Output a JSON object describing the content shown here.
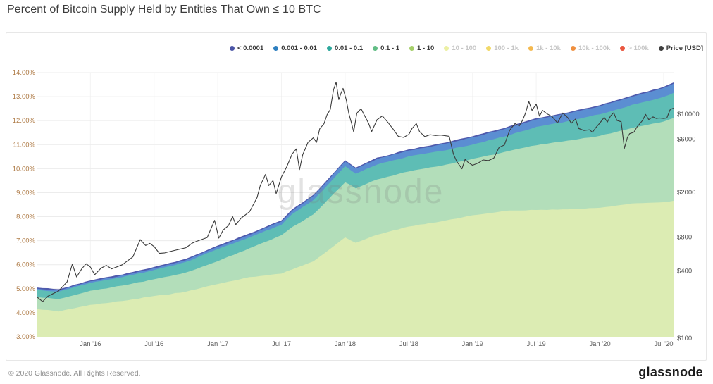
{
  "page": {
    "title": "Percent of Bitcoin Supply Held by Entities That Own ≤ 10 BTC"
  },
  "watermark": "glassnode",
  "footer": {
    "copyright": "© 2020 Glassnode. All Rights Reserved.",
    "brand": "glassnode"
  },
  "legend": {
    "position": "top-right",
    "items": [
      {
        "label": "< 0.0001",
        "color": "#4b55a6",
        "active": true
      },
      {
        "label": "0.001 - 0.01",
        "color": "#2e7fc0",
        "active": true
      },
      {
        "label": "0.01 - 0.1",
        "color": "#2fa89d",
        "active": true
      },
      {
        "label": "0.1 - 1",
        "color": "#62bd85",
        "active": true
      },
      {
        "label": "1 - 10",
        "color": "#a5cf6a",
        "active": true
      },
      {
        "label": "10 - 100",
        "color": "#ecf0a4",
        "active": false
      },
      {
        "label": "100 - 1k",
        "color": "#f1d969",
        "active": false
      },
      {
        "label": "1k - 10k",
        "color": "#f4b94f",
        "active": false
      },
      {
        "label": "10k - 100k",
        "color": "#ef8f3e",
        "active": false
      },
      {
        "label": "> 100k",
        "color": "#ea5740",
        "active": false
      },
      {
        "label": "Price [USD]",
        "color": "#404040",
        "active": true
      }
    ]
  },
  "chart_data": {
    "type": "area",
    "title": "Percent of Bitcoin Supply Held by Entities That Own ≤ 10 BTC",
    "stacked": true,
    "grid": true,
    "x_axis": {
      "start_month": "Aug 2015",
      "end_month": "Aug 2020",
      "tick_labels": [
        "Jan '16",
        "Jul '16",
        "Jan '17",
        "Jul '17",
        "Jan '18",
        "Jul '18",
        "Jan '19",
        "Jul '19",
        "Jan '20",
        "Jul '20"
      ],
      "tick_month_index": [
        5,
        11,
        17,
        23,
        29,
        35,
        41,
        47,
        53,
        59
      ],
      "label_color": "#5a5a5a"
    },
    "y_left": {
      "unit": "percent",
      "min": 3,
      "max": 14,
      "tick_labels": [
        "14.00%",
        "13.00%",
        "12.00%",
        "11.00%",
        "10.00%",
        "9.00%",
        "8.00%",
        "7.00%",
        "6.00%",
        "5.00%",
        "4.00%",
        "3.00%"
      ],
      "tick_values": [
        14,
        13,
        12,
        11,
        10,
        9,
        8,
        7,
        6,
        5,
        4,
        3
      ],
      "label_color": "#ae7a45"
    },
    "y_right": {
      "unit": "USD",
      "scale": "log",
      "tick_labels": [
        "$10000",
        "$6000",
        "$2000",
        "$800",
        "$400",
        "$100"
      ],
      "tick_values": [
        10000,
        6000,
        2000,
        800,
        400,
        100
      ],
      "label_color": "#4d4d4d"
    },
    "series_note": "cumulative_top_pct = stacked cumulative top of each band (percent of BTC supply), sampled at anchor_months (months since Aug 2015)",
    "anchor_months": [
      0,
      2,
      5,
      8,
      11,
      14,
      17,
      20,
      23,
      24,
      26,
      29,
      30,
      32,
      35,
      38,
      41,
      44,
      47,
      50,
      53,
      55,
      56,
      59,
      60
    ],
    "series": [
      {
        "name": "1 - 10",
        "fill": "#dcecb3",
        "cumulative_top_pct": [
          4.15,
          4.06,
          4.33,
          4.49,
          4.69,
          4.87,
          5.2,
          5.48,
          5.63,
          5.81,
          6.14,
          7.14,
          6.9,
          7.25,
          7.59,
          7.8,
          8.05,
          8.24,
          8.28,
          8.31,
          8.37,
          8.48,
          8.55,
          8.61,
          8.67
        ]
      },
      {
        "name": "0.1 - 1",
        "fill": "#b3deba",
        "cumulative_top_pct": [
          4.65,
          4.57,
          4.91,
          5.13,
          5.39,
          5.67,
          6.15,
          6.68,
          7.23,
          7.56,
          8.09,
          9.44,
          9.18,
          9.55,
          9.89,
          10.12,
          10.4,
          10.69,
          10.98,
          11.16,
          11.37,
          11.58,
          11.7,
          11.96,
          12.12
        ]
      },
      {
        "name": "0.01 - 0.1",
        "fill": "#5ebdb5",
        "cumulative_top_pct": [
          4.95,
          4.88,
          5.24,
          5.48,
          5.77,
          6.11,
          6.65,
          7.14,
          7.67,
          8.11,
          8.69,
          10.1,
          9.8,
          10.18,
          10.51,
          10.73,
          11.0,
          11.34,
          11.73,
          11.98,
          12.27,
          12.51,
          12.65,
          12.98,
          13.17
        ]
      },
      {
        "name": "0.001 - 0.01",
        "fill": "#5b8ed2",
        "cumulative_top_pct": [
          5.0,
          4.93,
          5.3,
          5.55,
          5.85,
          6.2,
          6.75,
          7.25,
          7.8,
          8.25,
          8.85,
          10.3,
          10.0,
          10.4,
          10.75,
          11.0,
          11.3,
          11.65,
          12.05,
          12.3,
          12.6,
          12.85,
          13.0,
          13.35,
          13.55
        ]
      },
      {
        "name": "< 0.0001",
        "fill": "#4f5aad",
        "cumulative_top_pct": [
          5.05,
          4.98,
          5.35,
          5.6,
          5.9,
          6.25,
          6.8,
          7.3,
          7.85,
          8.3,
          8.9,
          10.35,
          10.05,
          10.45,
          10.8,
          11.05,
          11.35,
          11.7,
          12.1,
          12.35,
          12.65,
          12.9,
          13.05,
          13.4,
          13.6
        ]
      }
    ],
    "price_series": {
      "name": "Price [USD]",
      "color": "#3b3b3b",
      "points_month_usd": [
        [
          0,
          232
        ],
        [
          0.5,
          212
        ],
        [
          1,
          237
        ],
        [
          2,
          264
        ],
        [
          2.8,
          318
        ],
        [
          3.3,
          460
        ],
        [
          3.7,
          352
        ],
        [
          4.2,
          418
        ],
        [
          4.6,
          462
        ],
        [
          5,
          432
        ],
        [
          5.4,
          368
        ],
        [
          6,
          422
        ],
        [
          6.5,
          447
        ],
        [
          7,
          416
        ],
        [
          8,
          452
        ],
        [
          9,
          532
        ],
        [
          9.7,
          758
        ],
        [
          10.2,
          672
        ],
        [
          10.6,
          702
        ],
        [
          11,
          658
        ],
        [
          11.5,
          572
        ],
        [
          12,
          578
        ],
        [
          13,
          610
        ],
        [
          14,
          642
        ],
        [
          14.6,
          706
        ],
        [
          15,
          732
        ],
        [
          16,
          792
        ],
        [
          16.7,
          1128
        ],
        [
          17.1,
          782
        ],
        [
          17.5,
          922
        ],
        [
          18,
          1012
        ],
        [
          18.4,
          1218
        ],
        [
          18.7,
          1032
        ],
        [
          19.2,
          1182
        ],
        [
          20,
          1348
        ],
        [
          20.7,
          1800
        ],
        [
          21,
          2300
        ],
        [
          21.5,
          2898
        ],
        [
          21.8,
          2302
        ],
        [
          22.2,
          2552
        ],
        [
          22.5,
          1952
        ],
        [
          23,
          2752
        ],
        [
          23.5,
          3400
        ],
        [
          24,
          4400
        ],
        [
          24.4,
          4900
        ],
        [
          24.7,
          3200
        ],
        [
          25,
          4350
        ],
        [
          25.5,
          5600
        ],
        [
          26,
          6150
        ],
        [
          26.3,
          5600
        ],
        [
          26.6,
          7400
        ],
        [
          27,
          8200
        ],
        [
          27.3,
          9900
        ],
        [
          27.6,
          11000
        ],
        [
          27.9,
          16500
        ],
        [
          28.15,
          19300
        ],
        [
          28.4,
          13500
        ],
        [
          28.6,
          15300
        ],
        [
          28.8,
          17000
        ],
        [
          29.1,
          13500
        ],
        [
          29.35,
          10100
        ],
        [
          29.6,
          8300
        ],
        [
          29.8,
          6950
        ],
        [
          30.1,
          10200
        ],
        [
          30.5,
          11200
        ],
        [
          30.8,
          9800
        ],
        [
          31.2,
          8300
        ],
        [
          31.5,
          7000
        ],
        [
          32,
          8900
        ],
        [
          32.5,
          9650
        ],
        [
          33,
          8500
        ],
        [
          33.5,
          7400
        ],
        [
          34,
          6350
        ],
        [
          34.5,
          6200
        ],
        [
          35,
          6600
        ],
        [
          35.3,
          7450
        ],
        [
          35.7,
          8250
        ],
        [
          36,
          7000
        ],
        [
          36.5,
          6300
        ],
        [
          37,
          6550
        ],
        [
          37.5,
          6450
        ],
        [
          38,
          6500
        ],
        [
          38.8,
          6350
        ],
        [
          39.2,
          4400
        ],
        [
          39.5,
          3800
        ],
        [
          40,
          3250
        ],
        [
          40.3,
          3950
        ],
        [
          40.6,
          3700
        ],
        [
          41,
          3500
        ],
        [
          41.5,
          3650
        ],
        [
          42,
          3900
        ],
        [
          42.5,
          3850
        ],
        [
          43,
          4050
        ],
        [
          43.5,
          5050
        ],
        [
          44,
          5300
        ],
        [
          44.5,
          7200
        ],
        [
          45,
          8250
        ],
        [
          45.4,
          7850
        ],
        [
          45.7,
          8750
        ],
        [
          46,
          10300
        ],
        [
          46.3,
          12998
        ],
        [
          46.6,
          10800
        ],
        [
          47,
          12300
        ],
        [
          47.3,
          9600
        ],
        [
          47.6,
          10800
        ],
        [
          48,
          10100
        ],
        [
          48.5,
          9500
        ],
        [
          49,
          8350
        ],
        [
          49.5,
          10250
        ],
        [
          50,
          9250
        ],
        [
          50.3,
          8300
        ],
        [
          50.7,
          9050
        ],
        [
          51,
          7450
        ],
        [
          51.5,
          7150
        ],
        [
          52,
          7250
        ],
        [
          52.3,
          6900
        ],
        [
          52.6,
          7550
        ],
        [
          53,
          8350
        ],
        [
          53.4,
          9350
        ],
        [
          53.7,
          8500
        ],
        [
          54,
          9650
        ],
        [
          54.3,
          10300
        ],
        [
          54.6,
          8800
        ],
        [
          55,
          8550
        ],
        [
          55.3,
          4950
        ],
        [
          55.6,
          6250
        ],
        [
          55.8,
          6700
        ],
        [
          56.2,
          6900
        ],
        [
          56.5,
          7700
        ],
        [
          57,
          8750
        ],
        [
          57.3,
          9950
        ],
        [
          57.6,
          8950
        ],
        [
          58,
          9450
        ],
        [
          58.3,
          9150
        ],
        [
          58.6,
          9250
        ],
        [
          59,
          9150
        ],
        [
          59.3,
          9250
        ],
        [
          59.6,
          10900
        ],
        [
          59.8,
          11200
        ],
        [
          60,
          11350
        ]
      ]
    }
  }
}
